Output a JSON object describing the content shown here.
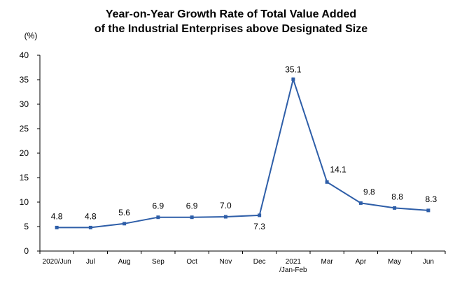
{
  "chart_data": {
    "type": "line",
    "title_line1": "Year-on-Year Growth Rate of Total Value Added",
    "title_line2": "of the Industrial Enterprises above Designated Size",
    "ylabel": "(%)",
    "xlabel": "",
    "ylim": [
      0,
      40
    ],
    "yticks": [
      "0",
      "5",
      "10",
      "15",
      "20",
      "25",
      "30",
      "35",
      "40"
    ],
    "categories": [
      [
        "2020/Jun"
      ],
      [
        "Jul"
      ],
      [
        "Aug"
      ],
      [
        "Sep"
      ],
      [
        "Oct"
      ],
      [
        "Nov"
      ],
      [
        "Dec"
      ],
      [
        "2021",
        "/Jan-Feb"
      ],
      [
        "Mar"
      ],
      [
        "Apr"
      ],
      [
        "May"
      ],
      [
        "Jun"
      ]
    ],
    "values": [
      4.8,
      4.8,
      5.6,
      6.9,
      6.9,
      7.0,
      7.3,
      35.1,
      14.1,
      9.8,
      8.8,
      8.3
    ],
    "data_labels": [
      "4.8",
      "4.8",
      "5.6",
      "6.9",
      "6.9",
      "7.0",
      "7.3",
      "35.1",
      "14.1",
      "9.8",
      "8.8",
      "8.3"
    ],
    "series_color": "#2E5EA8",
    "grid": false,
    "legend": "none"
  }
}
